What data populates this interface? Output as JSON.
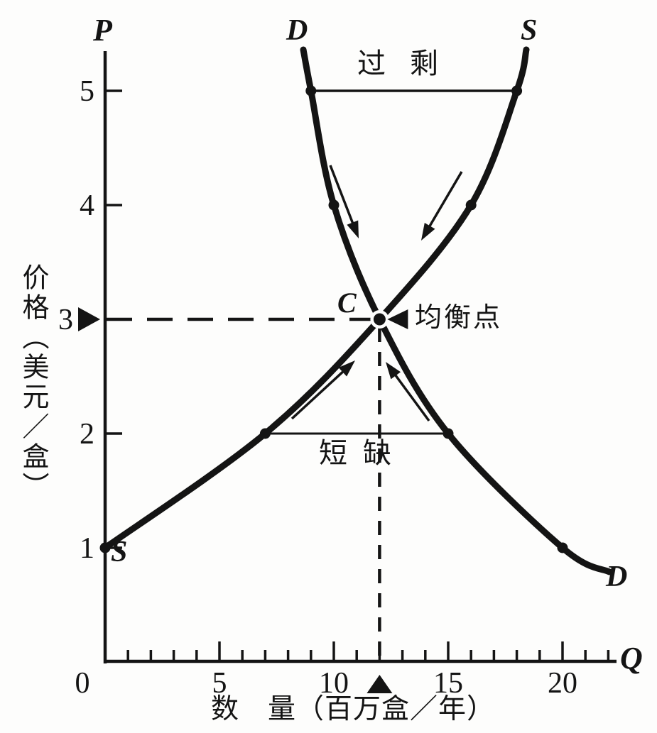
{
  "chart_data": {
    "type": "line",
    "description": "供求均衡图（过剩与短缺）",
    "series": [
      {
        "name": "demand",
        "label": "D",
        "points": [
          {
            "q": 9,
            "p": 5
          },
          {
            "q": 10,
            "p": 4
          },
          {
            "q": 12,
            "p": 3
          },
          {
            "q": 15,
            "p": 2
          },
          {
            "q": 20,
            "p": 1
          }
        ]
      },
      {
        "name": "supply",
        "label": "S",
        "points": [
          {
            "q": 0,
            "p": 1
          },
          {
            "q": 7,
            "p": 2
          },
          {
            "q": 12,
            "p": 3
          },
          {
            "q": 16,
            "p": 4
          },
          {
            "q": 18,
            "p": 5
          }
        ]
      }
    ],
    "axes": {
      "x": {
        "letter": "Q",
        "title": "数　量（百万盒／年）",
        "range": [
          0,
          22.5
        ],
        "ticks_labeled": [
          0,
          5,
          10,
          15,
          20
        ],
        "minor_tick_step": 1,
        "minor_tick_max": 22
      },
      "y": {
        "letter": "P",
        "title": "价格（美元／盒）",
        "range": [
          0,
          5.4
        ],
        "ticks_labeled": [
          1,
          2,
          3,
          4,
          5
        ]
      }
    },
    "equilibrium": {
      "label": "C",
      "callout": "均衡点",
      "q": 12,
      "p": 3
    },
    "surplus": {
      "label": "过剩",
      "price": 5,
      "from_q": 9,
      "to_q": 18
    },
    "shortage": {
      "label": "短缺",
      "price": 2,
      "from_q": 7,
      "to_q": 15
    },
    "grid": false,
    "colors": {
      "ink": "#141414",
      "paper": "#fdfdfc"
    }
  }
}
